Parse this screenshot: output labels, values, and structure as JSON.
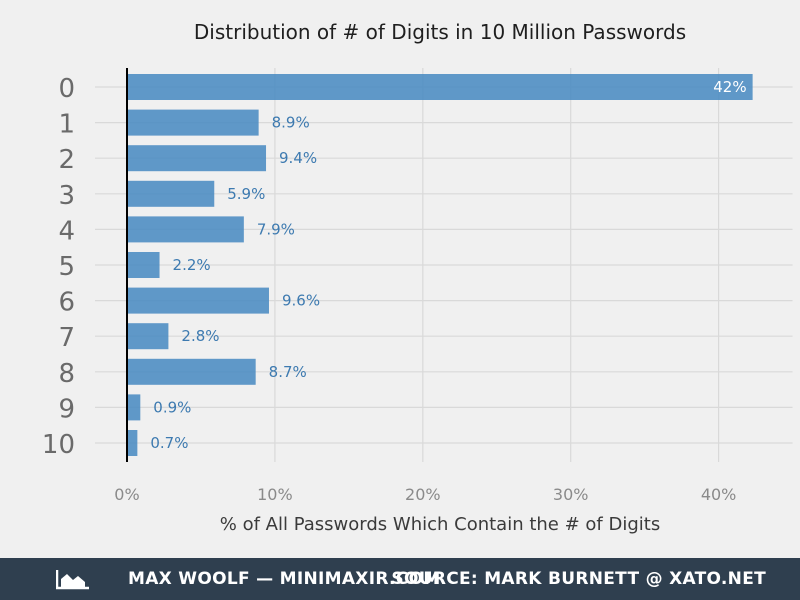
{
  "chart_data": {
    "type": "bar",
    "orientation": "horizontal",
    "title": "Distribution of # of Digits in 10 Million Passwords",
    "xlabel": "% of All Passwords Which Contain the # of Digits",
    "ylabel": "",
    "categories": [
      "0",
      "1",
      "2",
      "3",
      "4",
      "5",
      "6",
      "7",
      "8",
      "9",
      "10"
    ],
    "values": [
      42.3,
      8.9,
      9.4,
      5.9,
      7.9,
      2.2,
      9.6,
      2.8,
      8.7,
      0.9,
      0.7
    ],
    "value_labels": [
      "42%",
      "8.9%",
      "9.4%",
      "5.9%",
      "7.9%",
      "2.2%",
      "9.6%",
      "2.8%",
      "8.7%",
      "0.9%",
      "0.7%"
    ],
    "xlim": [
      0,
      45
    ],
    "x_ticks": [
      0,
      10,
      20,
      30,
      40
    ],
    "x_tick_labels": [
      "0%",
      "10%",
      "20%",
      "30%",
      "40%"
    ],
    "grid": true,
    "legend": "none"
  },
  "colors": {
    "background": "#f0f0f0",
    "bar": "#4a8bc2",
    "data_label_outside": "#3d7ab0",
    "data_label_inside": "#ffffff",
    "grid": "#d9d9d9",
    "baseline": "#000000",
    "footer_background": "#2f3f4f",
    "footer_text": "#ffffff"
  },
  "footer": {
    "icon": "area-chart-icon",
    "left_text": "MAX WOOLF — MINIMAXIR.COM",
    "right_text": "SOURCE: MARK BURNETT @ XATO.NET"
  }
}
